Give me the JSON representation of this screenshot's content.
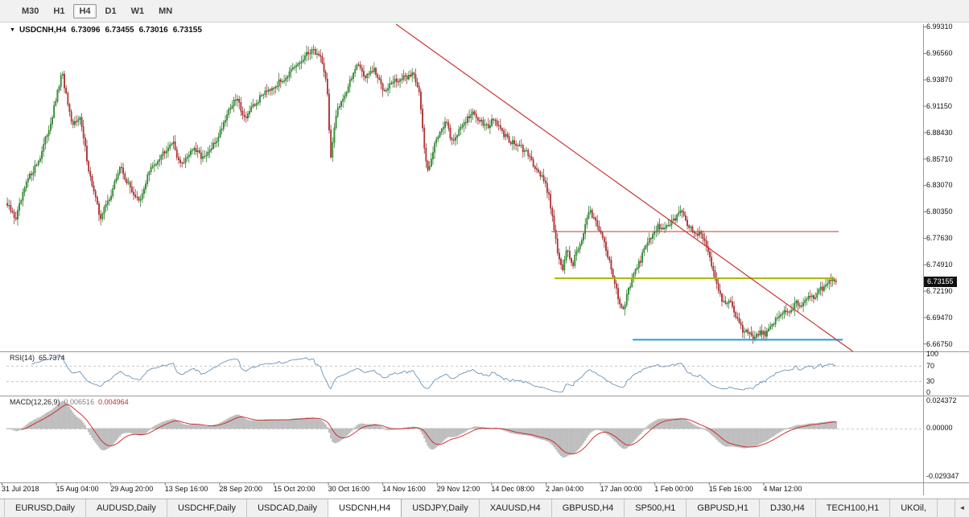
{
  "toolbar": {
    "timeframes": [
      {
        "label": "M30",
        "active": false
      },
      {
        "label": "H1",
        "active": false
      },
      {
        "label": "H4",
        "active": true
      },
      {
        "label": "D1",
        "active": false
      },
      {
        "label": "W1",
        "active": false
      },
      {
        "label": "MN",
        "active": false
      }
    ]
  },
  "chart": {
    "title": {
      "symbol_period": "USDCNH,H4",
      "open": "6.73096",
      "high": "6.73455",
      "low": "6.73016",
      "close": "6.73155"
    }
  },
  "price_axis": {
    "labels": [
      "6.99310",
      "6.96560",
      "6.93870",
      "6.91150",
      "6.88430",
      "6.85710",
      "6.83070",
      "6.80350",
      "6.77630",
      "6.74910",
      "6.72190",
      "6.69470",
      "6.66750"
    ],
    "current_badge": "6.73155"
  },
  "rsi": {
    "label": "RSI(14)",
    "value": "65.7374",
    "axis": [
      "100",
      "70",
      "30",
      "0"
    ]
  },
  "macd": {
    "label": "MACD(12,26,9)",
    "value_main": "0.006516",
    "value_signal": "0.004964",
    "axis": [
      "0.024372",
      "0.00000",
      "-0.029347"
    ]
  },
  "time_axis": {
    "labels": [
      "31 Jul 2018",
      "15 Aug 04:00",
      "29 Aug 20:00",
      "13 Sep 16:00",
      "28 Sep 20:00",
      "15 Oct 20:00",
      "30 Oct 16:00",
      "14 Nov 16:00",
      "29 Nov 12:00",
      "14 Dec 08:00",
      "2 Jan 04:00",
      "17 Jan 00:00",
      "1 Feb 00:00",
      "15 Feb 16:00",
      "4 Mar 12:00"
    ]
  },
  "tabs": {
    "active_index": 4,
    "scroll_left_icon": "◄",
    "items": [
      {
        "label": "EURUSD,Daily"
      },
      {
        "label": "AUDUSD,Daily"
      },
      {
        "label": "USDCHF,Daily"
      },
      {
        "label": "USDCAD,Daily"
      },
      {
        "label": "USDCNH,H4"
      },
      {
        "label": "USDJPY,Daily"
      },
      {
        "label": "XAUUSD,H4"
      },
      {
        "label": "GBPUSD,H4"
      },
      {
        "label": "SP500,H1"
      },
      {
        "label": "GBPUSD,H1"
      },
      {
        "label": "DJ30,H4"
      },
      {
        "label": "TECH100,H1"
      },
      {
        "label": "UKOil,"
      }
    ]
  },
  "colors": {
    "candle_up": "#2ea32e",
    "candle_up_stroke": "#0c5c0c",
    "candle_up_wick": "#1c6b1c",
    "candle_down": "#d63333",
    "candle_down_stroke": "#7c1212",
    "candle_down_wick": "#8c1d1d",
    "trendline": "#cc3333",
    "hline_red": "#cc3333",
    "hline_olive": "#a8b400",
    "hline_blue": "#2e9bd6",
    "rsi_line": "#5b87ad",
    "macd_hist": "#bfbfbf",
    "macd_signal": "#cc2222",
    "grid_dash": "#c8c8c8",
    "panel_sep": "#9a9a9a"
  },
  "chart_data": {
    "type": "candlestick",
    "symbol": "USDCNH",
    "period": "H4",
    "y_range": [
      6.66,
      6.996
    ],
    "x_range_labels": [
      "31 Jul 2018",
      "4 Mar 12:00"
    ],
    "current_price": 6.73155,
    "candles": {
      "count": 480,
      "synthesized_from_waypoints": true
    },
    "price_path_waypoints": [
      [
        0.0,
        6.81
      ],
      [
        0.01,
        6.796
      ],
      [
        0.024,
        6.835
      ],
      [
        0.039,
        6.858
      ],
      [
        0.053,
        6.897
      ],
      [
        0.066,
        6.946
      ],
      [
        0.078,
        6.89
      ],
      [
        0.087,
        6.903
      ],
      [
        0.099,
        6.843
      ],
      [
        0.112,
        6.797
      ],
      [
        0.126,
        6.823
      ],
      [
        0.136,
        6.85
      ],
      [
        0.146,
        6.831
      ],
      [
        0.16,
        6.812
      ],
      [
        0.17,
        6.843
      ],
      [
        0.184,
        6.86
      ],
      [
        0.199,
        6.876
      ],
      [
        0.209,
        6.851
      ],
      [
        0.223,
        6.868
      ],
      [
        0.238,
        6.858
      ],
      [
        0.252,
        6.876
      ],
      [
        0.267,
        6.908
      ],
      [
        0.277,
        6.92
      ],
      [
        0.286,
        6.9
      ],
      [
        0.299,
        6.913
      ],
      [
        0.311,
        6.928
      ],
      [
        0.325,
        6.934
      ],
      [
        0.34,
        6.945
      ],
      [
        0.354,
        6.957
      ],
      [
        0.367,
        6.97
      ],
      [
        0.379,
        6.962
      ],
      [
        0.386,
        6.93
      ],
      [
        0.39,
        6.856
      ],
      [
        0.398,
        6.91
      ],
      [
        0.41,
        6.928
      ],
      [
        0.422,
        6.957
      ],
      [
        0.432,
        6.941
      ],
      [
        0.442,
        6.949
      ],
      [
        0.454,
        6.929
      ],
      [
        0.466,
        6.937
      ],
      [
        0.481,
        6.941
      ],
      [
        0.49,
        6.946
      ],
      [
        0.497,
        6.928
      ],
      [
        0.503,
        6.868
      ],
      [
        0.507,
        6.845
      ],
      [
        0.515,
        6.871
      ],
      [
        0.522,
        6.887
      ],
      [
        0.529,
        6.896
      ],
      [
        0.536,
        6.876
      ],
      [
        0.544,
        6.884
      ],
      [
        0.551,
        6.896
      ],
      [
        0.561,
        6.904
      ],
      [
        0.571,
        6.897
      ],
      [
        0.581,
        6.891
      ],
      [
        0.587,
        6.899
      ],
      [
        0.597,
        6.884
      ],
      [
        0.607,
        6.876
      ],
      [
        0.617,
        6.871
      ],
      [
        0.626,
        6.864
      ],
      [
        0.636,
        6.851
      ],
      [
        0.646,
        6.838
      ],
      [
        0.653,
        6.822
      ],
      [
        0.66,
        6.786
      ],
      [
        0.665,
        6.756
      ],
      [
        0.67,
        6.744
      ],
      [
        0.675,
        6.764
      ],
      [
        0.682,
        6.748
      ],
      [
        0.687,
        6.764
      ],
      [
        0.694,
        6.776
      ],
      [
        0.702,
        6.804
      ],
      [
        0.709,
        6.797
      ],
      [
        0.717,
        6.78
      ],
      [
        0.723,
        6.764
      ],
      [
        0.73,
        6.74
      ],
      [
        0.736,
        6.718
      ],
      [
        0.743,
        6.703
      ],
      [
        0.75,
        6.724
      ],
      [
        0.757,
        6.74
      ],
      [
        0.765,
        6.756
      ],
      [
        0.772,
        6.772
      ],
      [
        0.779,
        6.78
      ],
      [
        0.786,
        6.789
      ],
      [
        0.794,
        6.785
      ],
      [
        0.801,
        6.793
      ],
      [
        0.808,
        6.798
      ],
      [
        0.814,
        6.806
      ],
      [
        0.82,
        6.789
      ],
      [
        0.827,
        6.785
      ],
      [
        0.835,
        6.78
      ],
      [
        0.843,
        6.772
      ],
      [
        0.85,
        6.748
      ],
      [
        0.854,
        6.736
      ],
      [
        0.859,
        6.719
      ],
      [
        0.866,
        6.707
      ],
      [
        0.872,
        6.715
      ],
      [
        0.879,
        6.695
      ],
      [
        0.885,
        6.684
      ],
      [
        0.893,
        6.678
      ],
      [
        0.901,
        6.673
      ],
      [
        0.908,
        6.681
      ],
      [
        0.915,
        6.676
      ],
      [
        0.922,
        6.687
      ],
      [
        0.93,
        6.695
      ],
      [
        0.937,
        6.703
      ],
      [
        0.944,
        6.699
      ],
      [
        0.951,
        6.711
      ],
      [
        0.959,
        6.707
      ],
      [
        0.966,
        6.719
      ],
      [
        0.973,
        6.715
      ],
      [
        0.981,
        6.724
      ],
      [
        0.988,
        6.728
      ],
      [
        0.995,
        6.737
      ],
      [
        1.0,
        6.7316
      ]
    ],
    "overlays": {
      "trendline": {
        "color": "#cc3333",
        "f1": 0.469,
        "price1": 6.996,
        "f2": 1.019,
        "price2": 6.66
      },
      "hlines": [
        {
          "price": 6.783,
          "f1": 0.656,
          "f2": 1.002,
          "color": "#cc3333",
          "width": 1
        },
        {
          "price": 6.735,
          "f1": 0.66,
          "f2": 0.997,
          "color": "#a8b400",
          "width": 2
        },
        {
          "price": 6.672,
          "f1": 0.754,
          "f2": 1.007,
          "color": "#2e9bd6",
          "width": 2
        }
      ]
    },
    "indicators": {
      "rsi": {
        "period": 14,
        "levels": [
          70,
          30
        ],
        "scale": [
          0,
          100
        ],
        "last_value": 65.7374
      },
      "macd": {
        "fast": 12,
        "slow": 26,
        "signal": 9,
        "last_main": 0.006516,
        "last_signal": 0.004964,
        "axis_values": [
          0.024372,
          0.0,
          -0.029347
        ]
      }
    }
  }
}
